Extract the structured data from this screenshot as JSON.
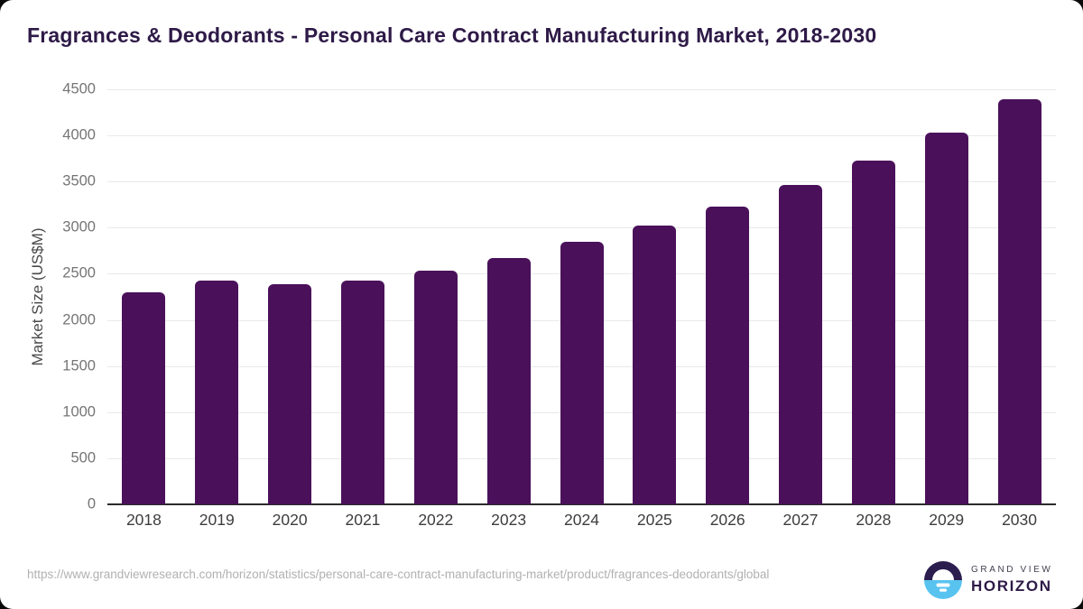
{
  "title": "Fragrances & Deodorants - Personal Care Contract Manufacturing Market, 2018-2030",
  "chart_data": {
    "type": "bar",
    "title": "Fragrances & Deodorants - Personal Care Contract Manufacturing Market, 2018-2030",
    "categories": [
      "2018",
      "2019",
      "2020",
      "2021",
      "2022",
      "2023",
      "2024",
      "2025",
      "2026",
      "2027",
      "2028",
      "2029",
      "2030"
    ],
    "values": [
      2300,
      2430,
      2385,
      2430,
      2535,
      2675,
      2845,
      3025,
      3230,
      3460,
      3730,
      4035,
      4390
    ],
    "xlabel": "",
    "ylabel": "Market Size (US$M)",
    "ylim": [
      0,
      4500
    ],
    "yticks": [
      0,
      500,
      1000,
      1500,
      2000,
      2500,
      3000,
      3500,
      4000,
      4500
    ],
    "grid": true,
    "legend": "none",
    "bar_color": "#4a115a"
  },
  "footer": {
    "source_url": "https://www.grandviewresearch.com/horizon/statistics/personal-care-contract-manufacturing-market/product/fragrances-deodorants/global",
    "logo": {
      "brand_top": "GRAND VIEW",
      "brand_bottom": "HORIZON"
    }
  },
  "colors": {
    "bar": "#4a115a",
    "title_text": "#2e1a47",
    "ytick_text": "#757575",
    "xtick_text": "#3d3d3d",
    "gridline": "#e9e9e9",
    "axis_line": "#2b2b2b",
    "source_text": "#b1b1b1",
    "logo_purple": "#2b1d4e",
    "logo_blue": "#59c3f0"
  }
}
